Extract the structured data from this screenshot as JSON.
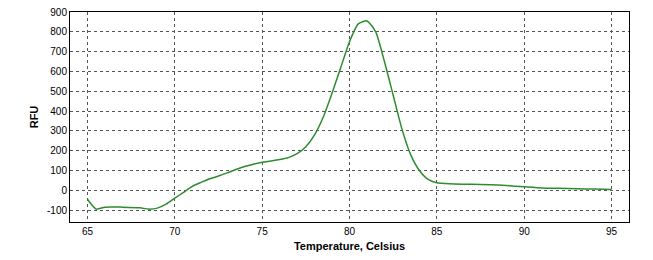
{
  "chart_data": {
    "type": "line",
    "x_label": "Temperature, Celsius",
    "y_label": "RFU",
    "x": [
      65,
      65.5,
      66,
      67,
      68,
      68.5,
      69,
      69.5,
      70,
      70.5,
      71,
      71.5,
      72,
      72.5,
      73,
      73.5,
      74,
      74.5,
      75,
      75.5,
      76,
      76.5,
      77,
      77.5,
      78,
      78.5,
      79,
      79.5,
      80,
      80.5,
      81,
      81.5,
      82,
      82.5,
      83,
      83.5,
      84,
      84.5,
      85,
      85.5,
      86,
      87,
      88,
      89,
      90,
      91,
      92,
      93,
      94,
      95
    ],
    "values": [
      -45,
      -95,
      -85,
      -85,
      -88,
      -95,
      -90,
      -70,
      -40,
      -10,
      20,
      40,
      58,
      72,
      88,
      105,
      120,
      132,
      142,
      148,
      155,
      165,
      185,
      220,
      280,
      370,
      490,
      620,
      750,
      840,
      855,
      800,
      650,
      480,
      310,
      180,
      100,
      55,
      38,
      34,
      32,
      30,
      28,
      24,
      18,
      12,
      10,
      8,
      6,
      4
    ],
    "color": "#2e8b2e",
    "xlim": [
      64,
      96
    ],
    "xticks": [
      65,
      70,
      75,
      80,
      85,
      90,
      95
    ],
    "ylim": [
      -160,
      900
    ],
    "yticks": [
      -100,
      0,
      100,
      200,
      300,
      400,
      500,
      600,
      700,
      800,
      900
    ],
    "grid": true
  }
}
